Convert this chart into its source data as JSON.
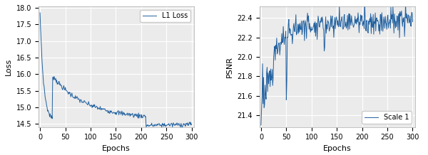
{
  "loss": {
    "xlabel": "Epochs",
    "ylabel": "Loss",
    "legend_label": "L1 Loss",
    "line_color": "#2060a0",
    "ylim": [
      14.4,
      18.05
    ],
    "xlim": [
      -3,
      305
    ],
    "xticks": [
      0,
      50,
      100,
      150,
      200,
      250,
      300
    ],
    "yticks": [
      14.5,
      15.0,
      15.5,
      16.0,
      16.5,
      17.0,
      17.5,
      18.0
    ],
    "n_points": 301
  },
  "psnr": {
    "xlabel": "Epochs",
    "ylabel": "PSNR",
    "legend_label": "Scale 1",
    "line_color": "#2060a0",
    "ylim": [
      21.28,
      22.52
    ],
    "xlim": [
      -3,
      305
    ],
    "xticks": [
      0,
      50,
      100,
      150,
      200,
      250,
      300
    ],
    "yticks": [
      21.4,
      21.6,
      21.8,
      22.0,
      22.2,
      22.4
    ],
    "n_points": 301
  },
  "fig_width": 6.0,
  "fig_height": 2.18,
  "dpi": 100,
  "background_color": "#ebebeb"
}
